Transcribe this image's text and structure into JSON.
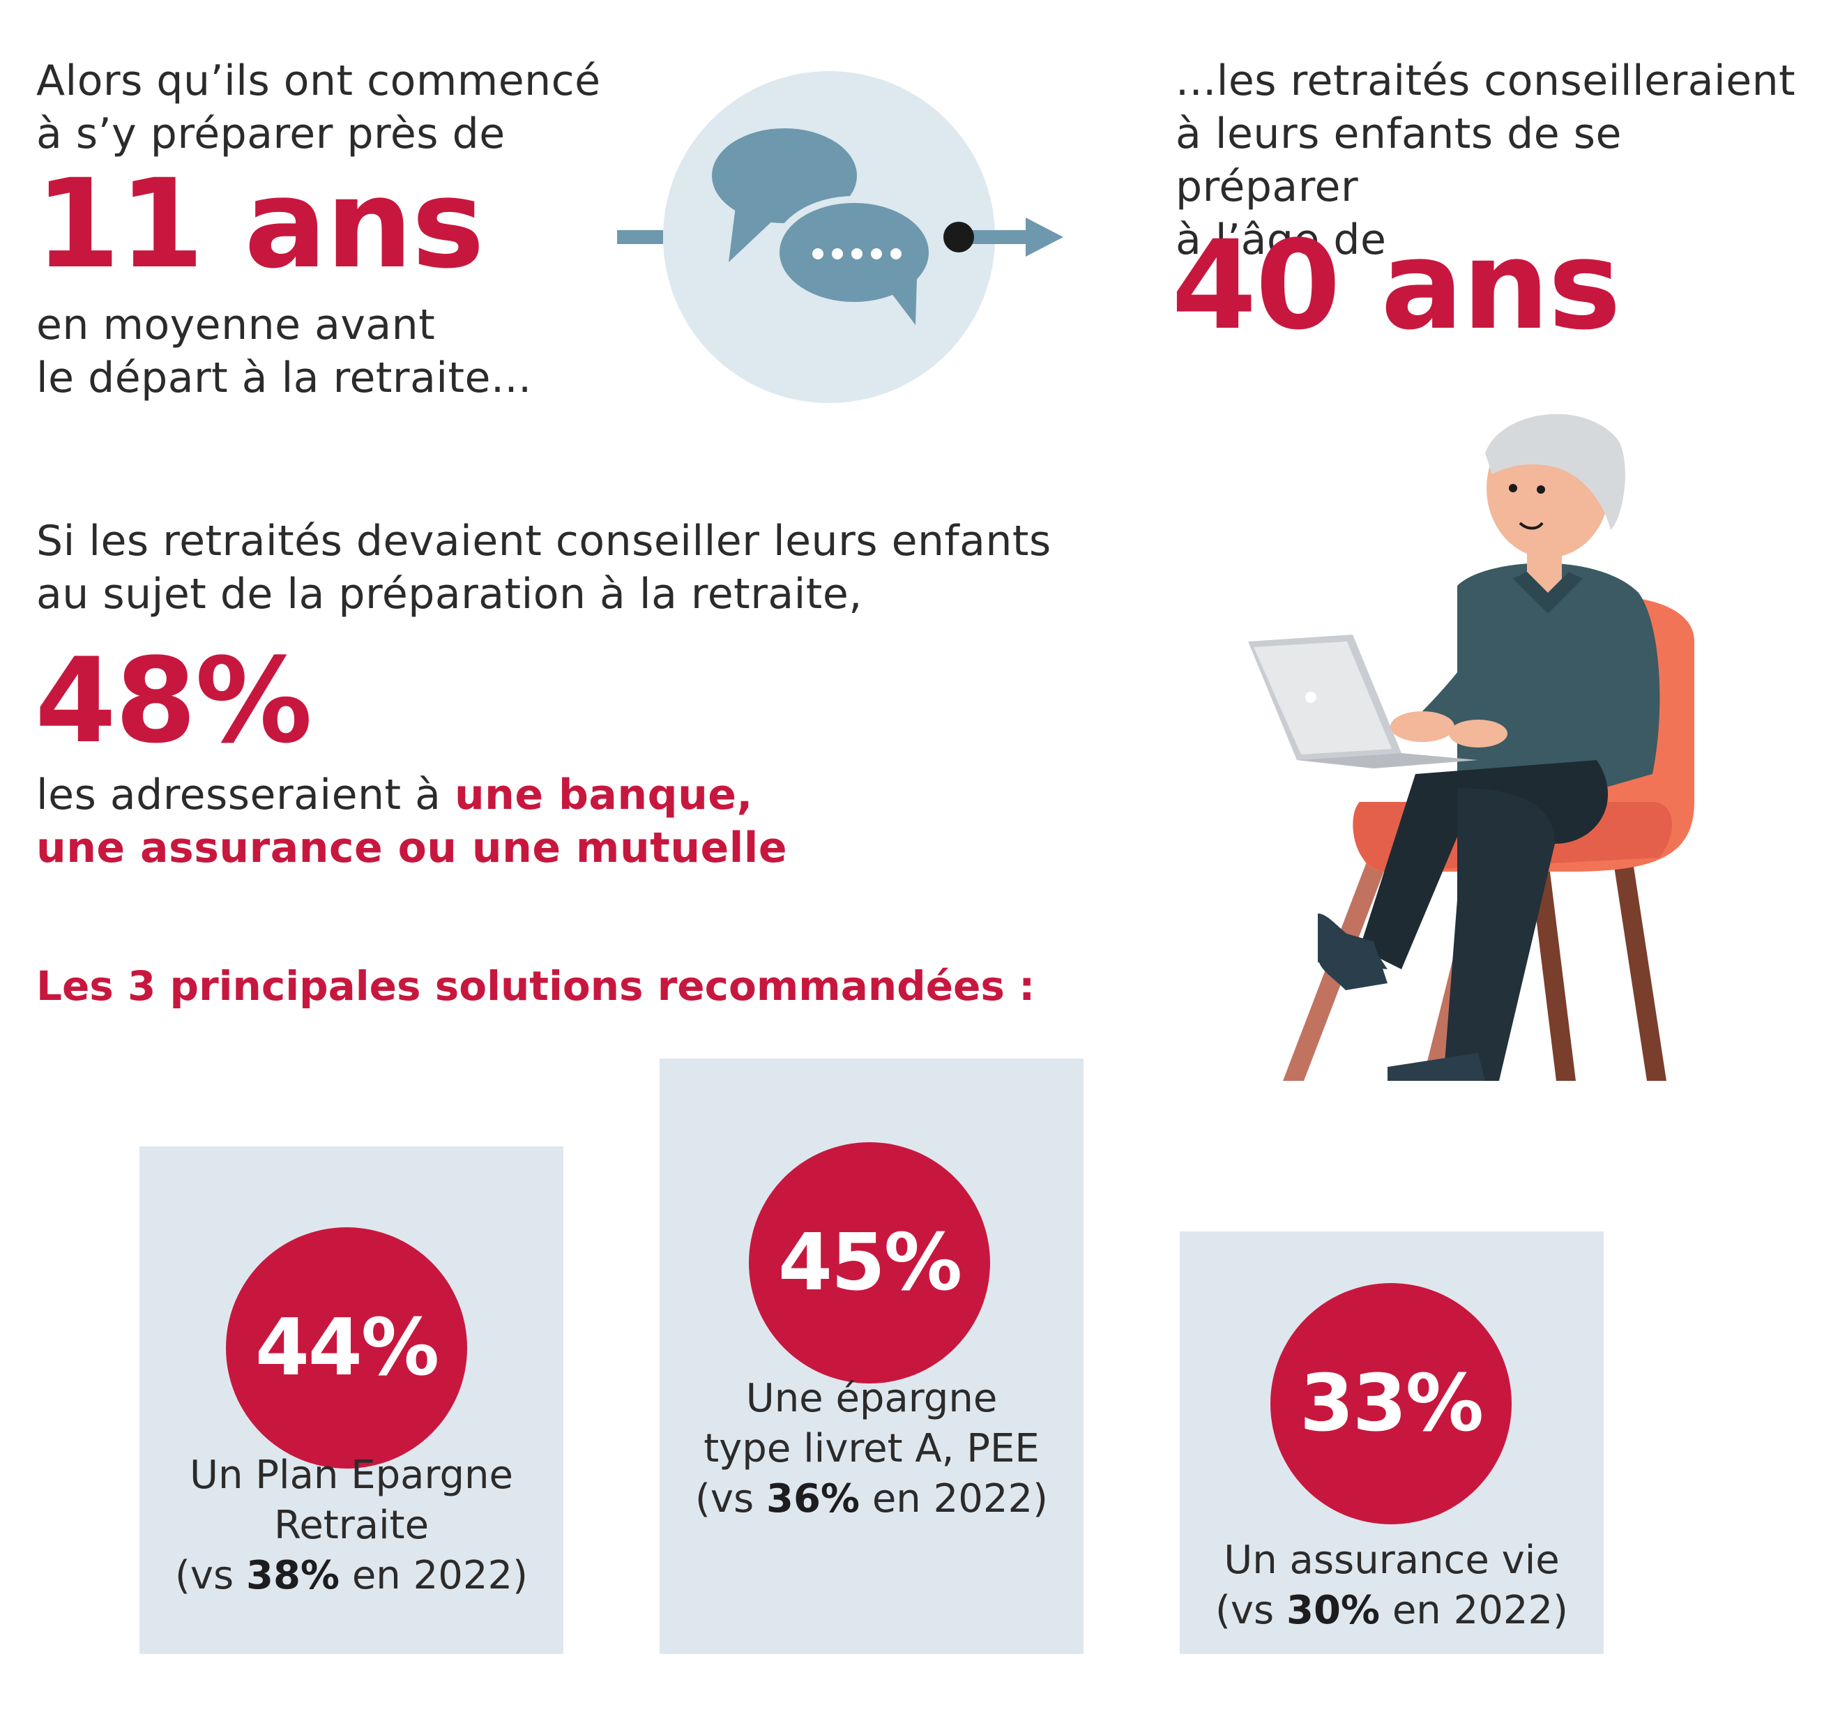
{
  "top_left": {
    "intro_line1": "Alors qu’ils ont commencé",
    "intro_line2": "à s’y préparer près de",
    "value": "11 ans",
    "outro_line1": "en moyenne avant",
    "outro_line2": "le départ à la retraite..."
  },
  "top_right": {
    "intro_line1": "...les retraités conseilleraient",
    "intro_line2": "à leurs enfants de se préparer",
    "intro_line3": "à l’âge de",
    "value": "40 ans"
  },
  "icons": {
    "speech": "speech-bubbles-icon",
    "arrow": "arrow-right-icon",
    "person": "retiree-laptop-illustration"
  },
  "advice": {
    "line1": "Si les retraités devaient conseiller leurs enfants",
    "line2": "au sujet de la préparation à la retraite,",
    "value": "48%",
    "text_prefix": "les adresseraient à ",
    "highlight1": "une banque,",
    "highlight2": "une assurance ou une mutuelle"
  },
  "solutions": {
    "heading": "Les 3 principales solutions recommandées :",
    "items": [
      {
        "value": "44%",
        "label_line1": "Un Plan Epargne",
        "label_line2": "Retraite",
        "cmp_prefix": "(vs ",
        "cmp_value": "38%",
        "cmp_suffix": " en 2022)"
      },
      {
        "value": "45%",
        "label_line1": "Une épargne",
        "label_line2": "type livret A, PEE",
        "cmp_prefix": "(vs ",
        "cmp_value": "36%",
        "cmp_suffix": " en 2022)"
      },
      {
        "value": "33%",
        "label_line1": "Un assurance vie",
        "label_line2": "",
        "cmp_prefix": "(vs ",
        "cmp_value": "30%",
        "cmp_suffix": " en 2022)"
      }
    ]
  },
  "colors": {
    "accent": "#c8173e",
    "panel": "#dfe7ee",
    "circle": "#dde8ef",
    "bubble": "#6e98ad",
    "chair": "#f27456"
  }
}
